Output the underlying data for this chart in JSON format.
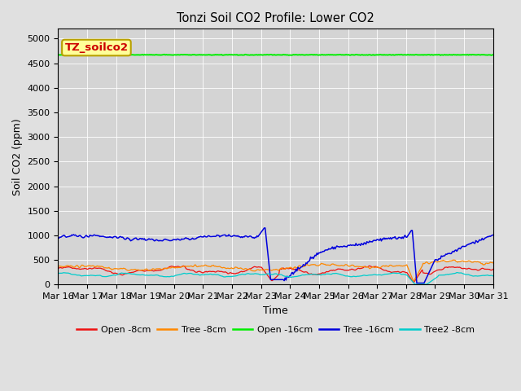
{
  "title": "Tonzi Soil CO2 Profile: Lower CO2",
  "xlabel": "Time",
  "ylabel": "Soil CO2 (ppm)",
  "ylim": [
    0,
    5200
  ],
  "yticks": [
    0,
    500,
    1000,
    1500,
    2000,
    2500,
    3000,
    3500,
    4000,
    4500,
    5000
  ],
  "fig_bg_color": "#e0e0e0",
  "plot_bg_color": "#d4d4d4",
  "legend_box_text": "TZ_soilco2",
  "legend_box_facecolor": "#ffff99",
  "legend_box_edgecolor": "#b8a000",
  "legend_box_textcolor": "#cc0000",
  "series_colors": {
    "Open -8cm": "#ee1111",
    "Tree -8cm": "#ff8800",
    "Open -16cm": "#00ee00",
    "Tree -16cm": "#0000dd",
    "Tree2 -8cm": "#00cccc"
  },
  "open_16cm_value": 4670,
  "xtick_labels": [
    "Mar 16",
    "Mar 17",
    "Mar 18",
    "Mar 19",
    "Mar 20",
    "Mar 21",
    "Mar 22",
    "Mar 23",
    "Mar 24",
    "Mar 25",
    "Mar 26",
    "Mar 27",
    "Mar 28",
    "Mar 29",
    "Mar 30",
    "Mar 31"
  ]
}
